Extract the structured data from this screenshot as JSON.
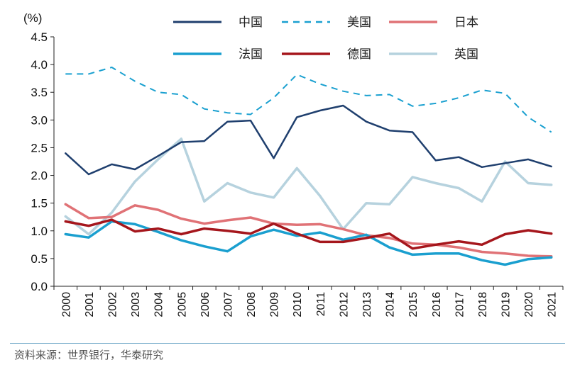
{
  "chart_data": {
    "type": "line",
    "title": "",
    "unit_label": "(%)",
    "xlabel": "",
    "ylabel": "",
    "ylim": [
      0,
      4.5
    ],
    "yticks": [
      "0.0",
      "0.5",
      "1.0",
      "1.5",
      "2.0",
      "2.5",
      "3.0",
      "3.5",
      "4.0",
      "4.5"
    ],
    "categories": [
      "2000",
      "2001",
      "2002",
      "2003",
      "2004",
      "2005",
      "2006",
      "2007",
      "2008",
      "2009",
      "2010",
      "2011",
      "2012",
      "2013",
      "2014",
      "2015",
      "2016",
      "2017",
      "2018",
      "2019",
      "2020",
      "2021"
    ],
    "legend_position": "top-right",
    "series": [
      {
        "name": "中国",
        "color": "#1f3f6e",
        "dash": "solid",
        "width": 2.5,
        "values": [
          2.4,
          2.02,
          2.2,
          2.11,
          2.35,
          2.6,
          2.62,
          2.97,
          2.99,
          2.31,
          3.05,
          3.17,
          3.26,
          2.97,
          2.81,
          2.78,
          2.27,
          2.33,
          2.15,
          2.22,
          2.29,
          2.16
        ]
      },
      {
        "name": "美国",
        "color": "#1aa0d0",
        "dash": "dashed",
        "width": 2.0,
        "values": [
          3.83,
          3.83,
          3.95,
          3.7,
          3.5,
          3.46,
          3.2,
          3.13,
          3.1,
          3.4,
          3.82,
          3.65,
          3.52,
          3.44,
          3.46,
          3.25,
          3.3,
          3.4,
          3.54,
          3.48,
          3.05,
          2.78
        ]
      },
      {
        "name": "日本",
        "color": "#e07276",
        "dash": "solid",
        "width": 3.5,
        "values": [
          1.48,
          1.23,
          1.25,
          1.46,
          1.38,
          1.22,
          1.13,
          1.19,
          1.24,
          1.13,
          1.11,
          1.12,
          1.03,
          0.92,
          0.87,
          0.77,
          0.75,
          0.7,
          0.62,
          0.59,
          0.55,
          0.54
        ]
      },
      {
        "name": "法国",
        "color": "#1a9fcf",
        "dash": "solid",
        "width": 3.5,
        "values": [
          0.94,
          0.88,
          1.17,
          1.12,
          0.98,
          0.83,
          0.72,
          0.63,
          0.9,
          1.02,
          0.91,
          0.97,
          0.84,
          0.93,
          0.7,
          0.57,
          0.59,
          0.59,
          0.47,
          0.39,
          0.49,
          0.52
        ]
      },
      {
        "name": "德国",
        "color": "#a5161c",
        "dash": "solid",
        "width": 3.5,
        "values": [
          1.17,
          1.09,
          1.2,
          0.99,
          1.04,
          0.94,
          1.04,
          1.0,
          0.95,
          1.13,
          0.95,
          0.8,
          0.8,
          0.87,
          0.95,
          0.68,
          0.75,
          0.81,
          0.75,
          0.94,
          1.01,
          0.95
        ]
      },
      {
        "name": "英国",
        "color": "#b6d2de",
        "dash": "solid",
        "width": 3.5,
        "values": [
          1.26,
          0.94,
          1.33,
          1.89,
          2.29,
          2.66,
          1.53,
          1.86,
          1.69,
          1.6,
          2.13,
          1.63,
          1.03,
          1.5,
          1.48,
          1.97,
          1.86,
          1.77,
          1.53,
          2.25,
          1.86,
          1.83
        ]
      }
    ],
    "source": "资料来源：世界银行，华泰研究"
  }
}
